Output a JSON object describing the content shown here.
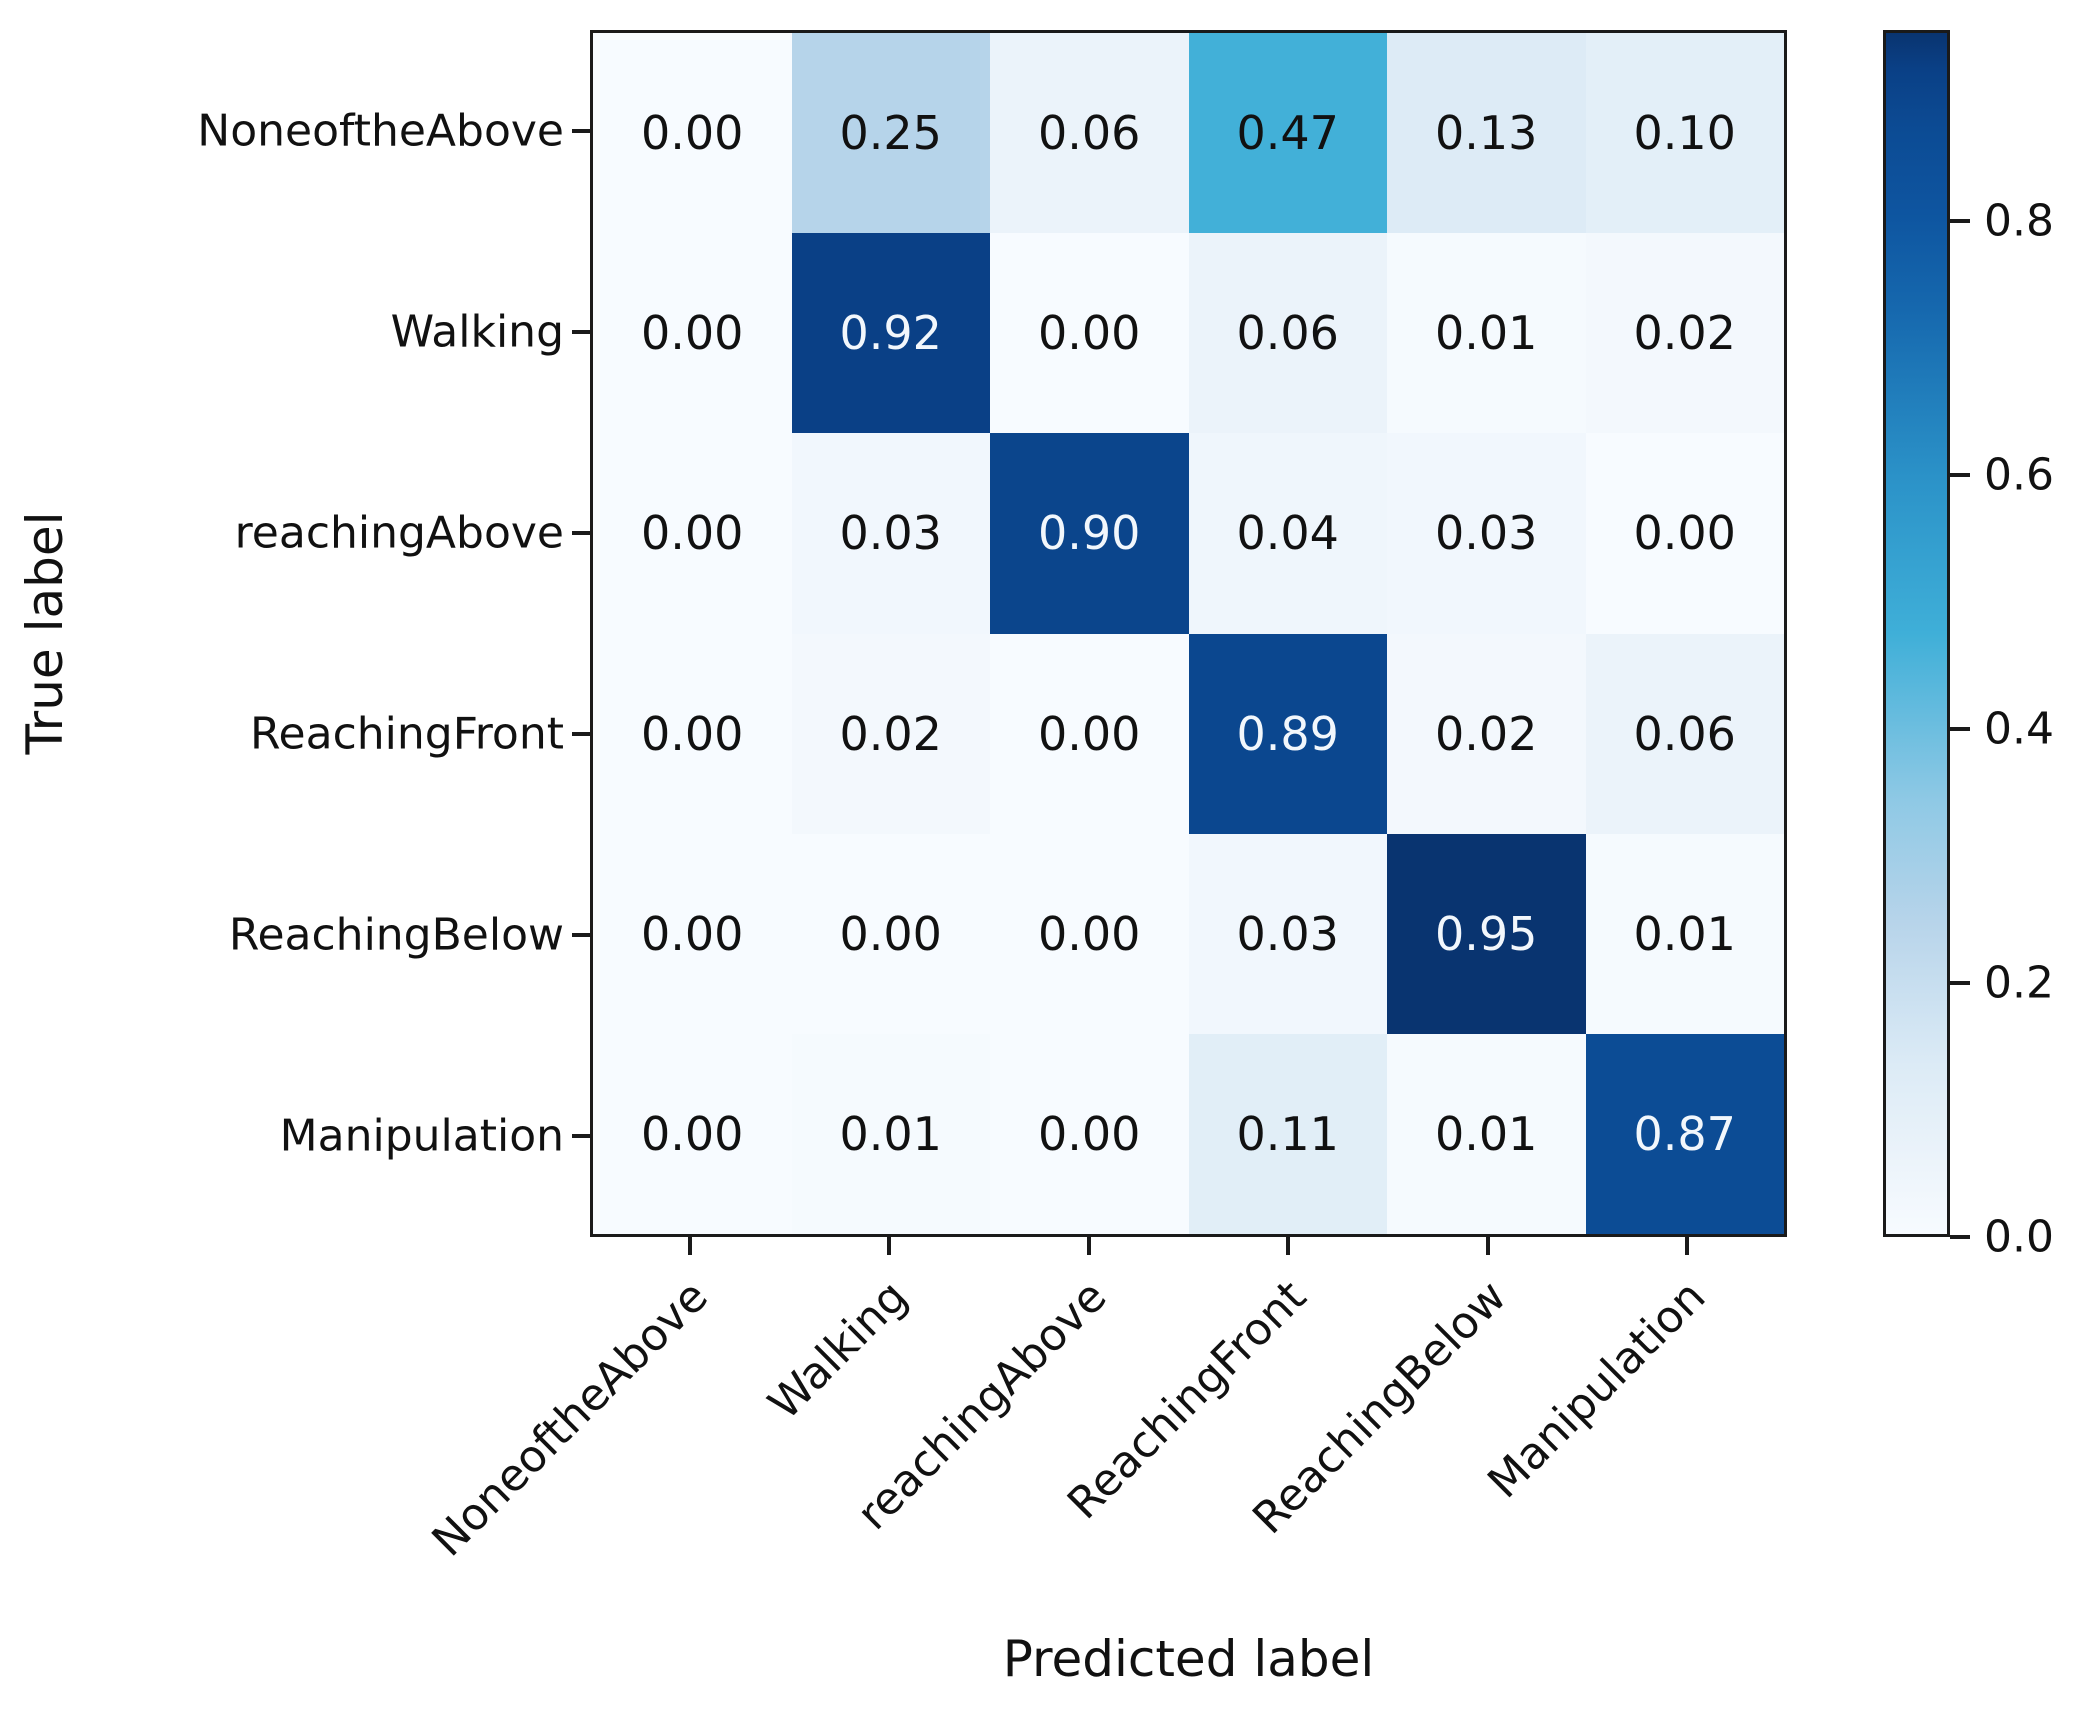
{
  "chart_data": {
    "type": "heatmap",
    "title": "",
    "xlabel": "Predicted label",
    "ylabel": "True label",
    "categories": [
      "NoneoftheAbove",
      "Walking",
      "reachingAbove",
      "ReachingFront",
      "ReachingBelow",
      "Manipulation"
    ],
    "series": [
      {
        "name": "NoneoftheAbove",
        "values": [
          0.0,
          0.25,
          0.06,
          0.47,
          0.13,
          0.1
        ]
      },
      {
        "name": "Walking",
        "values": [
          0.0,
          0.92,
          0.0,
          0.06,
          0.01,
          0.02
        ]
      },
      {
        "name": "reachingAbove",
        "values": [
          0.0,
          0.03,
          0.9,
          0.04,
          0.03,
          0.0
        ]
      },
      {
        "name": "ReachingFront",
        "values": [
          0.0,
          0.02,
          0.0,
          0.89,
          0.02,
          0.06
        ]
      },
      {
        "name": "ReachingBelow",
        "values": [
          0.0,
          0.0,
          0.0,
          0.03,
          0.95,
          0.01
        ]
      },
      {
        "name": "Manipulation",
        "values": [
          0.0,
          0.01,
          0.0,
          0.11,
          0.01,
          0.87
        ]
      }
    ],
    "value_format_decimals": 2,
    "colorbar": {
      "tick_values": [
        0.8,
        0.6,
        0.4,
        0.2,
        0.0
      ],
      "tick_format_decimals": 1,
      "vmin": 0.0,
      "vmax": 0.95,
      "position": "right"
    },
    "colormap_name": "Blues",
    "colormap_stops": [
      [
        0.0,
        "#f7fbff"
      ],
      [
        0.065,
        "#ebf3fa"
      ],
      [
        0.14,
        "#dcebf6"
      ],
      [
        0.26,
        "#b7d4ea"
      ],
      [
        0.36,
        "#8fc9e5"
      ],
      [
        0.5,
        "#3fafd8"
      ],
      [
        0.63,
        "#2b92c8"
      ],
      [
        0.77,
        "#1668ae"
      ],
      [
        0.85,
        "#0e55a0"
      ],
      [
        0.92,
        "#0c4b94"
      ],
      [
        0.97,
        "#0a4086"
      ],
      [
        1.0,
        "#093470"
      ]
    ],
    "cell_text_color_dark": "#111111",
    "cell_text_color_light": "#f2f7fc",
    "axis_color": "#1a1a1a",
    "grid": false,
    "legend_position": "none"
  }
}
